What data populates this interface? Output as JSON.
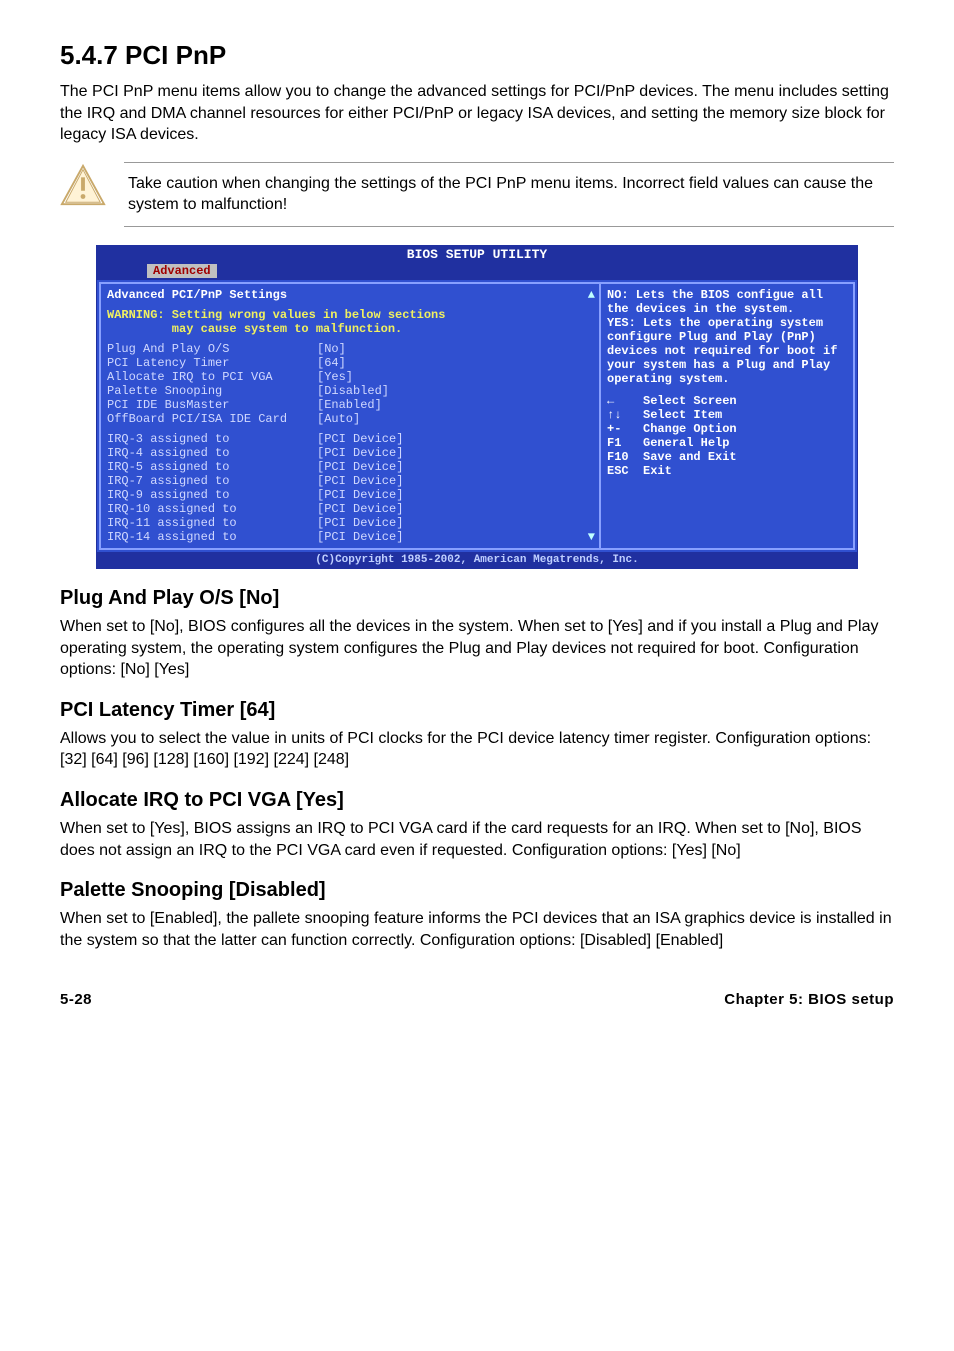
{
  "section": {
    "number_title": "5.4.7   PCI PnP",
    "intro": "The PCI PnP menu items allow you to change the advanced settings for PCI/PnP devices. The menu includes setting the IRQ and DMA channel resources for either PCI/PnP or legacy ISA devices, and setting the memory size block for legacy ISA devices."
  },
  "callout": {
    "text": "Take caution when changing the settings of the PCI PnP menu items. Incorrect field values can cause the system to malfunction!"
  },
  "bios": {
    "title": "BIOS SETUP UTILITY",
    "tab": "Advanced",
    "panel_title": "Advanced PCI/PnP Settings",
    "warning_l1": "WARNING: Setting wrong values in below sections",
    "warning_l2": "         may cause system to malfunction.",
    "rows_a": [
      {
        "label": "Plug And Play O/S",
        "val": "[No]"
      },
      {
        "label": "PCI Latency Timer",
        "val": "[64]"
      },
      {
        "label": "Allocate IRQ to PCI VGA",
        "val": "[Yes]"
      },
      {
        "label": "Palette Snooping",
        "val": "[Disabled]"
      },
      {
        "label": "PCI IDE BusMaster",
        "val": "[Enabled]"
      },
      {
        "label": "OffBoard PCI/ISA IDE Card",
        "val": "[Auto]"
      }
    ],
    "rows_b": [
      {
        "label": "IRQ-3 assigned to",
        "val": "[PCI Device]"
      },
      {
        "label": "IRQ-4 assigned to",
        "val": "[PCI Device]"
      },
      {
        "label": "IRQ-5 assigned to",
        "val": "[PCI Device]"
      },
      {
        "label": "IRQ-7 assigned to",
        "val": "[PCI Device]"
      },
      {
        "label": "IRQ-9 assigned to",
        "val": "[PCI Device]"
      },
      {
        "label": "IRQ-10 assigned to",
        "val": "[PCI Device]"
      },
      {
        "label": "IRQ-11 assigned to",
        "val": "[PCI Device]"
      },
      {
        "label": "IRQ-14 assigned to",
        "val": "[PCI Device]"
      }
    ],
    "help": "NO: Lets the BIOS configue all the devices in the system.\nYES: Lets the operating system configure Plug and Play (PnP) devices not required for boot if your system has a Plug and Play operating system.",
    "keys": [
      {
        "k": "←",
        "t": "Select Screen"
      },
      {
        "k": "↑↓",
        "t": "Select Item"
      },
      {
        "k": "+-",
        "t": "Change Option"
      },
      {
        "k": "F1",
        "t": "General Help"
      },
      {
        "k": "F10",
        "t": "Save and Exit"
      },
      {
        "k": "ESC",
        "t": "Exit"
      }
    ],
    "copyright": "(C)Copyright 1985-2002, American Megatrends, Inc."
  },
  "subs": {
    "pnp_title": "Plug And Play O/S [No]",
    "pnp_text": "When set to [No], BIOS configures all the devices in the system. When set to [Yes] and if you install a Plug and Play operating system, the operating system configures the Plug and Play devices not required for boot. Configuration options: [No] [Yes]",
    "lat_title": "PCI Latency Timer [64]",
    "lat_text": "Allows you to select the value in units of PCI clocks for the PCI device latency timer register. Configuration options: [32] [64] [96] [128] [160] [192] [224] [248]",
    "irq_title": "Allocate IRQ to PCI VGA [Yes]",
    "irq_text": "When set to [Yes], BIOS assigns an IRQ to PCI VGA card if the card requests for an IRQ. When set to [No], BIOS does not assign an IRQ to the PCI VGA card even if requested. Configuration options: [Yes] [No]",
    "pal_title": "Palette Snooping [Disabled]",
    "pal_text": "When set to [Enabled], the pallete snooping feature informs the PCI devices that an ISA graphics device is installed in the system so that the latter can function correctly. Configuration options: [Disabled] [Enabled]"
  },
  "footer": {
    "left": "5-28",
    "right": "Chapter 5: BIOS setup"
  },
  "colors": {
    "bios_frame": "#2030a0",
    "bios_bg": "#3050d0",
    "bios_border": "#88a0ff",
    "tab_bg": "#c0c0c0",
    "tab_fg": "#a00000",
    "warn_fg": "#f0f060"
  }
}
